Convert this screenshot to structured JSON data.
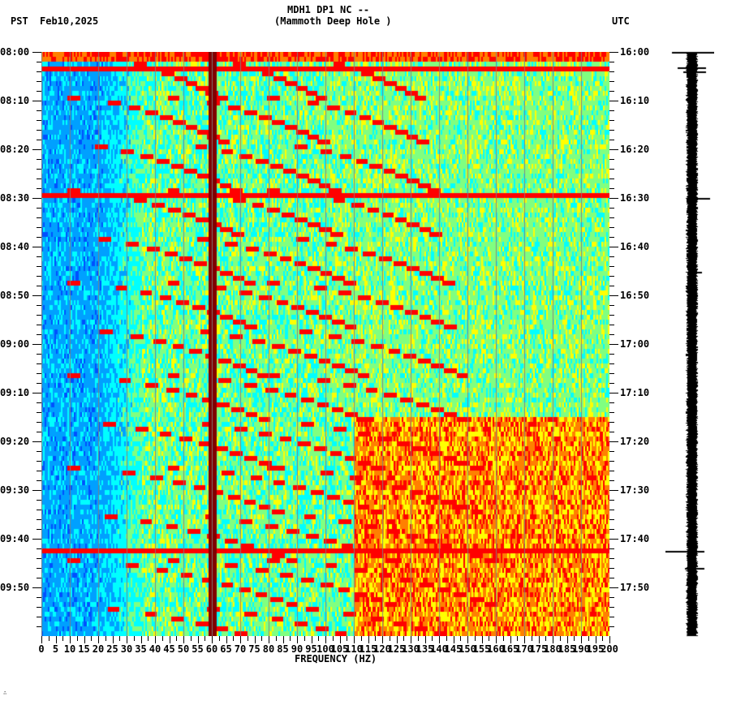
{
  "header": {
    "station": "MDH1 DP1 NC --",
    "location": "(Mammoth Deep Hole )",
    "left_tz": "PST",
    "date": "Feb10,2025",
    "right_tz": "UTC"
  },
  "footer": {
    "corner_mark": "∴"
  },
  "chart_data": {
    "type": "heatmap",
    "title": "MDH1 DP1 NC -- (Mammoth Deep Hole )",
    "subtitle": "Feb10,2025",
    "xlabel": "FREQUENCY (HZ)",
    "ylabel_left": "PST",
    "ylabel_right": "UTC",
    "xlim": [
      0,
      200
    ],
    "x_ticks": [
      0,
      5,
      10,
      15,
      20,
      25,
      30,
      35,
      40,
      45,
      50,
      55,
      60,
      65,
      70,
      75,
      80,
      85,
      90,
      95,
      100,
      105,
      110,
      115,
      120,
      125,
      130,
      135,
      140,
      145,
      150,
      155,
      160,
      165,
      170,
      175,
      180,
      185,
      190,
      195,
      200
    ],
    "x_tick_labels": [
      "0",
      "5",
      "10",
      "15",
      "20",
      "25",
      "30",
      "35",
      "40",
      "45",
      "50",
      "55",
      "60",
      "65",
      "70",
      "75",
      "80",
      "85",
      "90",
      "95",
      "100",
      "105",
      "110",
      "115",
      "120",
      "125",
      "130",
      "135",
      "140",
      "145",
      "150",
      "155",
      "160",
      "165",
      "170",
      "175",
      "180",
      "185",
      "190",
      "195",
      "200"
    ],
    "y_ticks_left": [
      "08:00",
      "08:10",
      "08:20",
      "08:30",
      "08:40",
      "08:50",
      "09:00",
      "09:10",
      "09:20",
      "09:30",
      "09:40",
      "09:50"
    ],
    "y_ticks_right": [
      "16:00",
      "16:10",
      "16:20",
      "16:30",
      "16:40",
      "16:50",
      "17:00",
      "17:10",
      "17:20",
      "17:30",
      "17:40",
      "17:50"
    ],
    "time_range_minutes": 120,
    "minor_tick_minutes": 2,
    "gridlines": "vertical every 10 Hz (gray)",
    "colormap": [
      "#0050ff",
      "#00a0ff",
      "#00ffff",
      "#80ff80",
      "#ffff00",
      "#ff8000",
      "#ff0000",
      "#800000"
    ],
    "features": {
      "persistent_lines_hz": [
        60
      ],
      "low_noise_band_hz": [
        0,
        35
      ],
      "high_energy_onset_minute": 75,
      "high_energy_band_hz": [
        110,
        200
      ],
      "broadband_events_minutes": [
        3,
        29,
        102
      ],
      "sweeping_harmonics": "repeating rising frequency arcs every ~10 min"
    }
  },
  "trace": {
    "label": "seismogram trace",
    "spikes_minutes": [
      0,
      3,
      4,
      30,
      45,
      102,
      104
    ]
  }
}
